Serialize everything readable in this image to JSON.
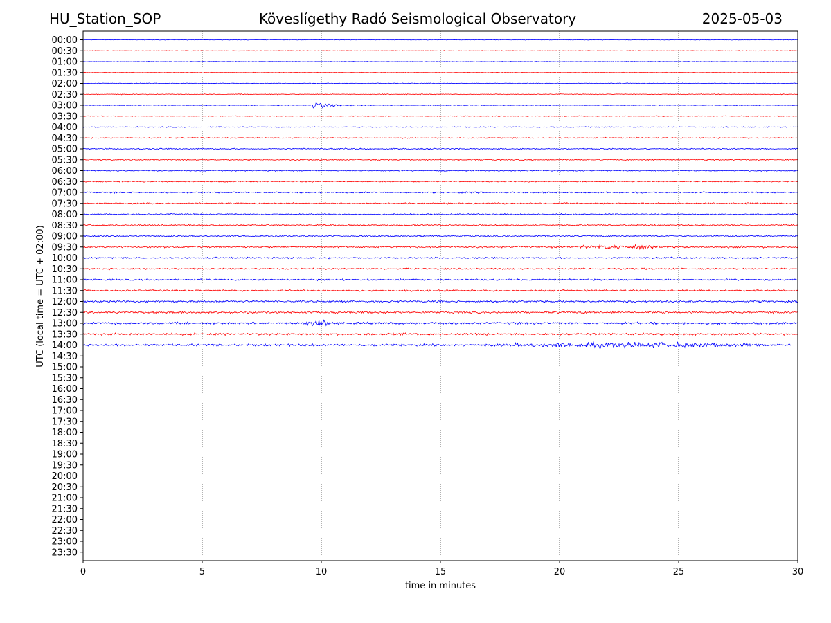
{
  "header": {
    "station": "HU_Station_SOP",
    "title": "Köveslígethy Radó Seismological Observatory",
    "date": "2025-05-03"
  },
  "chart_data": {
    "type": "line",
    "xlabel": "time in minutes",
    "ylabel": "UTC (local time = UTC + 02:00)",
    "xlim": [
      0,
      30
    ],
    "xticks": [
      "0",
      "5",
      "10",
      "15",
      "20",
      "25",
      "30"
    ],
    "grid": "vertical dotted lines at 5, 10, 15, 20, 25 minutes",
    "row_labels": [
      "00:00",
      "00:30",
      "01:00",
      "01:30",
      "02:00",
      "02:30",
      "03:00",
      "03:30",
      "04:00",
      "04:30",
      "05:00",
      "05:30",
      "06:00",
      "06:30",
      "07:00",
      "07:30",
      "08:00",
      "08:30",
      "09:00",
      "09:30",
      "10:00",
      "10:30",
      "11:00",
      "11:30",
      "12:00",
      "12:30",
      "13:00",
      "13:30",
      "14:00",
      "14:30",
      "15:00",
      "15:30",
      "16:00",
      "16:30",
      "17:00",
      "17:30",
      "18:00",
      "18:30",
      "19:00",
      "19:30",
      "20:00",
      "20:30",
      "21:00",
      "21:30",
      "22:00",
      "22:30",
      "23:00",
      "23:30"
    ],
    "series_colors": {
      "full_hour": "#0000ff",
      "half_hour": "#ff0000"
    },
    "traces": [
      {
        "row": "00:00",
        "end_min": 30,
        "noise": 0.2
      },
      {
        "row": "00:30",
        "end_min": 30,
        "noise": 0.2
      },
      {
        "row": "01:00",
        "end_min": 30,
        "noise": 0.2
      },
      {
        "row": "01:30",
        "end_min": 30,
        "noise": 0.2
      },
      {
        "row": "02:00",
        "end_min": 30,
        "noise": 0.25
      },
      {
        "row": "02:30",
        "end_min": 30,
        "noise": 0.25
      },
      {
        "row": "03:00",
        "end_min": 30,
        "noise": 0.25,
        "events": [
          {
            "start_min": 9.6,
            "end_min": 12.5,
            "peak": 3.0,
            "type": "quake"
          }
        ]
      },
      {
        "row": "03:30",
        "end_min": 30,
        "noise": 0.25
      },
      {
        "row": "04:00",
        "end_min": 30,
        "noise": 0.3
      },
      {
        "row": "04:30",
        "end_min": 30,
        "noise": 0.35
      },
      {
        "row": "05:00",
        "end_min": 30,
        "noise": 0.4
      },
      {
        "row": "05:30",
        "end_min": 30,
        "noise": 0.4
      },
      {
        "row": "06:00",
        "end_min": 30,
        "noise": 0.4
      },
      {
        "row": "06:30",
        "end_min": 30,
        "noise": 0.4
      },
      {
        "row": "07:00",
        "end_min": 30,
        "noise": 0.45
      },
      {
        "row": "07:30",
        "end_min": 30,
        "noise": 0.45
      },
      {
        "row": "08:00",
        "end_min": 30,
        "noise": 0.45
      },
      {
        "row": "08:30",
        "end_min": 30,
        "noise": 0.5
      },
      {
        "row": "09:00",
        "end_min": 30,
        "noise": 0.5
      },
      {
        "row": "09:30",
        "end_min": 30,
        "noise": 0.6,
        "events": [
          {
            "start_min": 20.5,
            "end_min": 24.5,
            "peak": 1.0,
            "type": "burst"
          }
        ]
      },
      {
        "row": "10:00",
        "end_min": 30,
        "noise": 0.5
      },
      {
        "row": "10:30",
        "end_min": 30,
        "noise": 0.5
      },
      {
        "row": "11:00",
        "end_min": 30,
        "noise": 0.55
      },
      {
        "row": "11:30",
        "end_min": 30,
        "noise": 0.55
      },
      {
        "row": "12:00",
        "end_min": 30,
        "noise": 0.65
      },
      {
        "row": "12:30",
        "end_min": 30,
        "noise": 0.7
      },
      {
        "row": "13:00",
        "end_min": 30,
        "noise": 0.7,
        "events": [
          {
            "start_min": 9.0,
            "end_min": 10.8,
            "peak": 1.4,
            "type": "burst"
          }
        ]
      },
      {
        "row": "13:30",
        "end_min": 30,
        "noise": 0.7
      },
      {
        "row": "14:00",
        "end_min": 29.7,
        "noise": 0.75,
        "events": [
          {
            "start_min": 17.0,
            "end_min": 29.0,
            "peak": 1.2,
            "type": "burst"
          }
        ]
      }
    ]
  }
}
